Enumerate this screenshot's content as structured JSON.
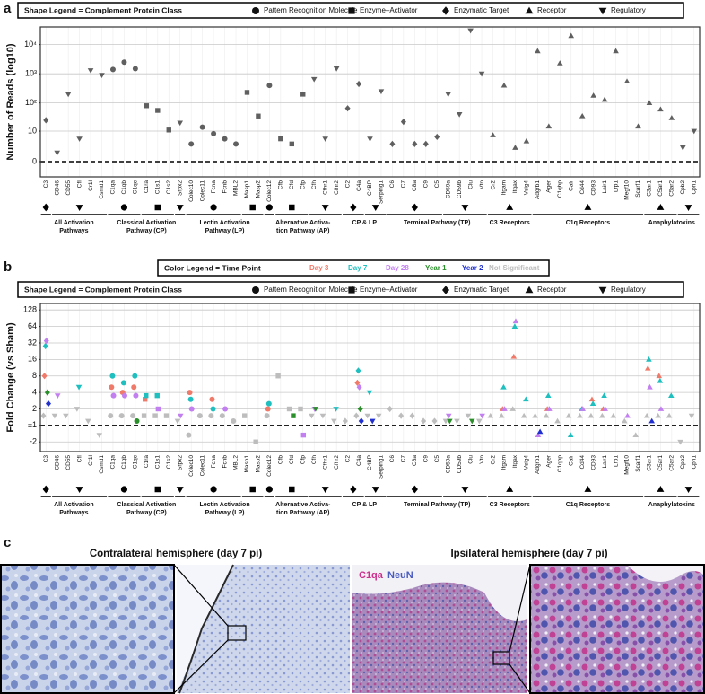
{
  "chart_data": [
    {
      "type": "strip",
      "panel_label": "a",
      "ylabel": "Number of Reads (log10)",
      "yscale": "log1p",
      "ylim": [
        -0.7,
        40000
      ],
      "yticks": [
        0,
        10,
        {
          "value": 100,
          "label": "10²"
        },
        {
          "value": 1000,
          "label": "10³"
        },
        {
          "value": 10000,
          "label": "10⁴"
        }
      ],
      "grid": true,
      "color": "#444444",
      "shape_legend": {
        "title": "Shape Legend = Complement Protein Class",
        "items": [
          "Pattern Recognition Molecule",
          "Enzyme–Activator",
          "Enzymatic Target",
          "Receptor",
          "Regulatory"
        ]
      },
      "groups": [
        {
          "label": [
            "All Activation",
            "Pathways"
          ],
          "categories": [
            "C3",
            "CD46",
            "CD55",
            "CfI",
            "Cr1l",
            "Csmd1"
          ],
          "classes": [
            2,
            4,
            4,
            4,
            4,
            4
          ]
        },
        {
          "label": [
            "Classical Activation",
            "Pathway (CP)"
          ],
          "categories": [
            "C1qa",
            "C1qb",
            "C1qc",
            "C1ra",
            "C1s1",
            "C1s2",
            "Srpx2"
          ],
          "classes": [
            0,
            0,
            0,
            1,
            1,
            1,
            4
          ]
        },
        {
          "label": [
            "Lectin Activation",
            "Pathway (LP)"
          ],
          "categories": [
            "Colec10",
            "Colec11",
            "Fcna",
            "Fcnb",
            "MBL2",
            "Masp1",
            "Masp2"
          ],
          "classes": [
            0,
            0,
            0,
            0,
            0,
            1,
            1
          ]
        },
        {
          "label": [
            "Alternative Activa-",
            "tion Pathway (AP)"
          ],
          "categories": [
            "Colec12",
            "Cfb",
            "Cfd",
            "Cfp",
            "Cfh",
            "Cfhr1",
            "Cfhr2"
          ],
          "classes": [
            0,
            1,
            1,
            1,
            4,
            4,
            4
          ]
        },
        {
          "label": [
            "CP & LP"
          ],
          "categories": [
            "C2",
            "C4a",
            "C4BP",
            "Serping1"
          ],
          "classes": [
            2,
            2,
            4,
            4
          ]
        },
        {
          "label": [
            "Terminal Pathway (TP)"
          ],
          "categories": [
            "C6",
            "C7",
            "C8a",
            "C9",
            "C5",
            "CD59a",
            "CD59b",
            "Clu",
            "Vtn"
          ],
          "classes": [
            2,
            2,
            2,
            2,
            2,
            4,
            4,
            4,
            4
          ]
        },
        {
          "label": [
            "C3 Receptors"
          ],
          "categories": [
            "Cr2",
            "Itgam",
            "Itgax",
            "Vsig4"
          ],
          "classes": [
            3,
            3,
            3,
            3
          ]
        },
        {
          "label": [
            "C1q Receptors"
          ],
          "categories": [
            "Adgrb1",
            "Ager",
            "C1qbp",
            "Calr",
            "Cd44",
            "CD93",
            "Lair1",
            "Lrp1",
            "Megf10",
            "Scarf1"
          ],
          "classes": [
            3,
            3,
            3,
            3,
            3,
            3,
            3,
            3,
            3,
            3
          ]
        },
        {
          "label": [
            "Anaphylatoxins"
          ],
          "categories": [
            "C3ar1",
            "C5ar1",
            "C5ar2",
            "Cpb2",
            "Cpn1"
          ],
          "classes": [
            3,
            3,
            3,
            4,
            4
          ]
        }
      ],
      "values": [
        25,
        1,
        200,
        5,
        1300,
        900,
        1400,
        2500,
        1500,
        80,
        55,
        11,
        20,
        3,
        14,
        8,
        5,
        3,
        230,
        35,
        400,
        5,
        3,
        200,
        650,
        5,
        1500,
        65,
        450,
        5,
        250,
        3,
        22,
        3,
        3,
        6,
        200,
        40,
        30000,
        1000,
        7,
        400,
        2,
        4,
        6000,
        15,
        2300,
        20000,
        35,
        180,
        130,
        6000,
        550,
        15,
        100,
        60,
        30,
        2,
        10
      ]
    },
    {
      "type": "strip",
      "panel_label": "b",
      "ylabel": "Fold Change (vs Sham)",
      "yscale": "signed-log2",
      "ylim": [
        -3,
        168
      ],
      "yticks": [
        128,
        64,
        32,
        16,
        8,
        4,
        2,
        {
          "value": 1,
          "label": "±1"
        },
        -2
      ],
      "grid": true,
      "color_legend": {
        "title": "Color Legend = Time Point"
      },
      "shape_legend": {
        "title": "Shape Legend = Complement Protein Class",
        "items": [
          "Pattern Recognition Molecule",
          "Enzyme–Activator",
          "Enzymatic Target",
          "Receptor",
          "Regulatory"
        ]
      },
      "groups": [
        {
          "label": [
            "All Activation",
            "Pathways"
          ],
          "categories": [
            "C3",
            "CD46",
            "CD55",
            "CfI",
            "Cr1l",
            "Csmd1"
          ],
          "classes": [
            2,
            4,
            4,
            4,
            4,
            4
          ]
        },
        {
          "label": [
            "Classical Activation",
            "Pathway (CP)"
          ],
          "categories": [
            "C1qa",
            "C1qb",
            "C1qc",
            "C1ra",
            "C1s1",
            "C1s2",
            "Srpx2"
          ],
          "classes": [
            0,
            0,
            0,
            1,
            1,
            1,
            4
          ]
        },
        {
          "label": [
            "Lectin Activation",
            "Pathway (LP)"
          ],
          "categories": [
            "Colec10",
            "Colec11",
            "Fcna",
            "Fcnb",
            "MBL2",
            "Masp1",
            "Masp2"
          ],
          "classes": [
            0,
            0,
            0,
            0,
            0,
            1,
            1
          ]
        },
        {
          "label": [
            "Alternative Activa-",
            "tion Pathway (AP)"
          ],
          "categories": [
            "Colec12",
            "Cfb",
            "Cfd",
            "Cfp",
            "Cfh",
            "Cfhr1",
            "Cfhr2"
          ],
          "classes": [
            0,
            1,
            1,
            1,
            4,
            4,
            4
          ]
        },
        {
          "label": [
            "CP & LP"
          ],
          "categories": [
            "C2",
            "C4a",
            "C4BP",
            "Serping1"
          ],
          "classes": [
            2,
            2,
            4,
            4
          ]
        },
        {
          "label": [
            "Terminal Pathway (TP)"
          ],
          "categories": [
            "C6",
            "C7",
            "C8a",
            "C9",
            "C5",
            "CD59a",
            "CD59b",
            "Clu",
            "Vtn"
          ],
          "classes": [
            2,
            2,
            2,
            2,
            2,
            4,
            4,
            4,
            4
          ]
        },
        {
          "label": [
            "C3 Receptors"
          ],
          "categories": [
            "Cr2",
            "Itgam",
            "Itgax",
            "Vsig4"
          ],
          "classes": [
            3,
            3,
            3,
            3
          ]
        },
        {
          "label": [
            "C1q Receptors"
          ],
          "categories": [
            "Adgrb1",
            "Ager",
            "C1qbp",
            "Calr",
            "Cd44",
            "CD93",
            "Lair1",
            "Lrp1",
            "Megf10",
            "Scarf1"
          ],
          "classes": [
            3,
            3,
            3,
            3,
            3,
            3,
            3,
            3,
            3,
            3
          ]
        },
        {
          "label": [
            "Anaphylatoxins"
          ],
          "categories": [
            "C3ar1",
            "C5ar1",
            "C5ar2",
            "Cpb2",
            "Cpn1"
          ],
          "classes": [
            3,
            3,
            3,
            4,
            4
          ]
        }
      ],
      "series": [
        {
          "name": "Not Significant",
          "color": "#bdbdbd",
          "values": [
            1.5,
            1.5,
            1.5,
            2,
            1.2,
            -1.5,
            1.5,
            1.5,
            1.5,
            1.5,
            1.5,
            1.5,
            1.2,
            -1.5,
            1.5,
            1.5,
            1.5,
            1.2,
            1.5,
            -2,
            1.5,
            8,
            2,
            2,
            1.5,
            1.5,
            1.2,
            1.2,
            1.5,
            1.5,
            1.5,
            2,
            1.5,
            1.5,
            1.2,
            1.2,
            1.2,
            1.2,
            1.5,
            1.2,
            1.5,
            1.5,
            2,
            1.5,
            1.5,
            1.5,
            1.2,
            1.5,
            1.5,
            1.5,
            1.5,
            1.5,
            1.2,
            -1.5,
            1.5,
            1.5,
            1.5,
            -2,
            1.5
          ]
        },
        {
          "name": "Day 3",
          "color": "#f07a6a",
          "values": [
            8,
            null,
            null,
            null,
            null,
            null,
            5,
            4,
            5,
            3,
            null,
            null,
            null,
            4,
            null,
            3,
            null,
            null,
            null,
            null,
            2,
            null,
            null,
            null,
            null,
            null,
            null,
            null,
            6,
            null,
            null,
            null,
            null,
            null,
            null,
            null,
            null,
            null,
            null,
            null,
            null,
            2,
            18,
            null,
            null,
            2,
            null,
            null,
            null,
            3,
            2,
            null,
            null,
            null,
            11,
            8,
            null,
            null,
            null
          ]
        },
        {
          "name": "Day 7",
          "color": "#1fbfbf",
          "values": [
            28,
            null,
            null,
            5,
            null,
            null,
            8,
            6,
            8,
            3.5,
            3.5,
            null,
            null,
            3,
            null,
            2,
            null,
            null,
            null,
            null,
            2.5,
            null,
            null,
            null,
            null,
            null,
            2,
            null,
            10,
            4,
            null,
            null,
            null,
            null,
            null,
            null,
            null,
            null,
            null,
            null,
            null,
            5,
            64,
            3,
            null,
            3.5,
            null,
            -1.5,
            2,
            2.5,
            3.5,
            null,
            null,
            null,
            16,
            6.5,
            3.5,
            null,
            null
          ]
        },
        {
          "name": "Day 28",
          "color": "#c27ff0",
          "values": [
            35,
            3.5,
            null,
            null,
            null,
            null,
            3.5,
            3.5,
            3.5,
            null,
            2,
            null,
            1.5,
            2,
            null,
            null,
            2,
            null,
            null,
            null,
            null,
            null,
            null,
            -1.5,
            2,
            null,
            null,
            null,
            5,
            null,
            null,
            null,
            null,
            null,
            null,
            null,
            1.5,
            null,
            null,
            1.5,
            null,
            2,
            80,
            null,
            -1.5,
            2,
            null,
            null,
            2,
            null,
            2,
            null,
            1.5,
            null,
            5,
            2,
            null,
            null,
            null
          ]
        },
        {
          "name": "Year 1",
          "color": "#2a8f2a",
          "values": [
            4,
            null,
            null,
            null,
            null,
            null,
            null,
            null,
            1.2,
            null,
            null,
            null,
            null,
            null,
            null,
            null,
            null,
            null,
            null,
            null,
            null,
            null,
            1.5,
            null,
            2,
            null,
            null,
            null,
            2,
            null,
            null,
            null,
            null,
            null,
            null,
            null,
            1.2,
            null,
            1.2,
            null,
            null,
            null,
            null,
            null,
            null,
            null,
            null,
            null,
            null,
            null,
            null,
            null,
            null,
            null,
            null,
            null,
            null,
            null,
            null
          ]
        },
        {
          "name": "Year 2",
          "color": "#1f2fd0",
          "values": [
            2.5,
            null,
            null,
            null,
            null,
            null,
            null,
            null,
            null,
            null,
            null,
            null,
            null,
            null,
            null,
            null,
            null,
            null,
            null,
            null,
            null,
            null,
            null,
            null,
            null,
            null,
            null,
            null,
            1.2,
            1.2,
            null,
            null,
            null,
            null,
            null,
            null,
            null,
            null,
            null,
            null,
            null,
            null,
            null,
            null,
            -1.3,
            null,
            null,
            null,
            null,
            null,
            null,
            null,
            null,
            null,
            1.2,
            null,
            null,
            null,
            null
          ]
        }
      ]
    }
  ],
  "panel_c": {
    "label": "c",
    "titles": [
      "Contralateral hemisphere (day 7 pi)",
      "Ipsilateral hemisphere (day 7 pi)"
    ],
    "stains": [
      "C1qa",
      "NeuN"
    ]
  }
}
